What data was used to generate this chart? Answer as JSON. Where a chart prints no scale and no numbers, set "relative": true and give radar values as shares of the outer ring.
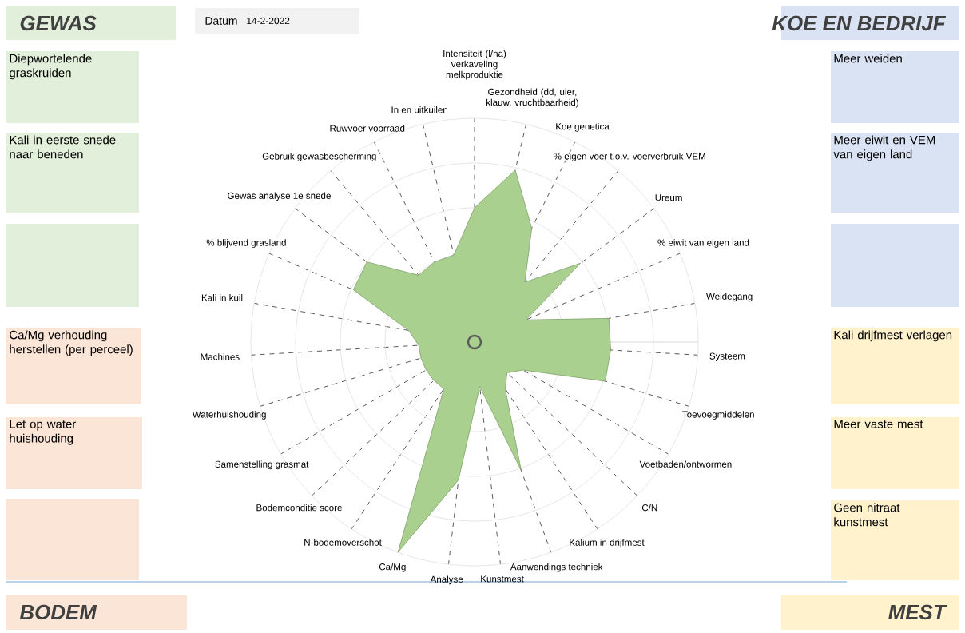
{
  "chart_data": {
    "type": "radar",
    "relative": true,
    "grid": true,
    "categories": [
      "Intensiteit (l/ha) verkaveling melkproduktie",
      "Gezondheid (dd, uier, klauw, vruchtbaarheid)",
      "Koe genetica",
      "% eigen voer t.o.v. voerverbruik VEM",
      "Ureum",
      "% eiwit van eigen land",
      "Weidegang",
      "Systeem",
      "Toevoegmiddelen",
      "Voetbaden/ontwormen",
      "C/N",
      "Kalium in drijfmest",
      "Aanwendings techniek",
      "Kunstmest",
      "Analyse",
      "Ca/Mg",
      "N-bodemoverschot",
      "Bodemconditie score",
      "Samenstelling grasmat",
      "Waterhuishouding",
      "Machines",
      "Kali in kuil",
      "% blijvend grasland",
      "Gewas analyse 1e snede",
      "Gebruik gewasbescherming",
      "Ruwvoer voorraad",
      "In en uitkuilen"
    ],
    "series": [
      {
        "color": "#a9d08e",
        "values": [
          0.6,
          0.79,
          0.57,
          0.35,
          0.59,
          0.25,
          0.61,
          0.61,
          0.61,
          0.25,
          0.2,
          0.25,
          0.61,
          0.2,
          0.62,
          1.0,
          0.25,
          0.25,
          0.25,
          0.25,
          0.25,
          0.3,
          0.59,
          0.6,
          0.39,
          0.4,
          0.4
        ]
      }
    ],
    "annotations": [
      "GEWAS",
      "Datum",
      "14-2-2022",
      "KOE EN BEDRIJF",
      "Diepwortelende graskruiden",
      "Kali in eerste snede naar beneden",
      "Ca/Mg verhouding herstellen (per perceel)",
      "Let op water huishouding",
      "Meer weiden",
      "Meer eiwit en VEM van eigen land",
      "Kali drijfmest verlagen",
      "Meer vaste mest",
      "Geen nitraat kunstmest",
      "BODEM",
      "MEST"
    ]
  }
}
